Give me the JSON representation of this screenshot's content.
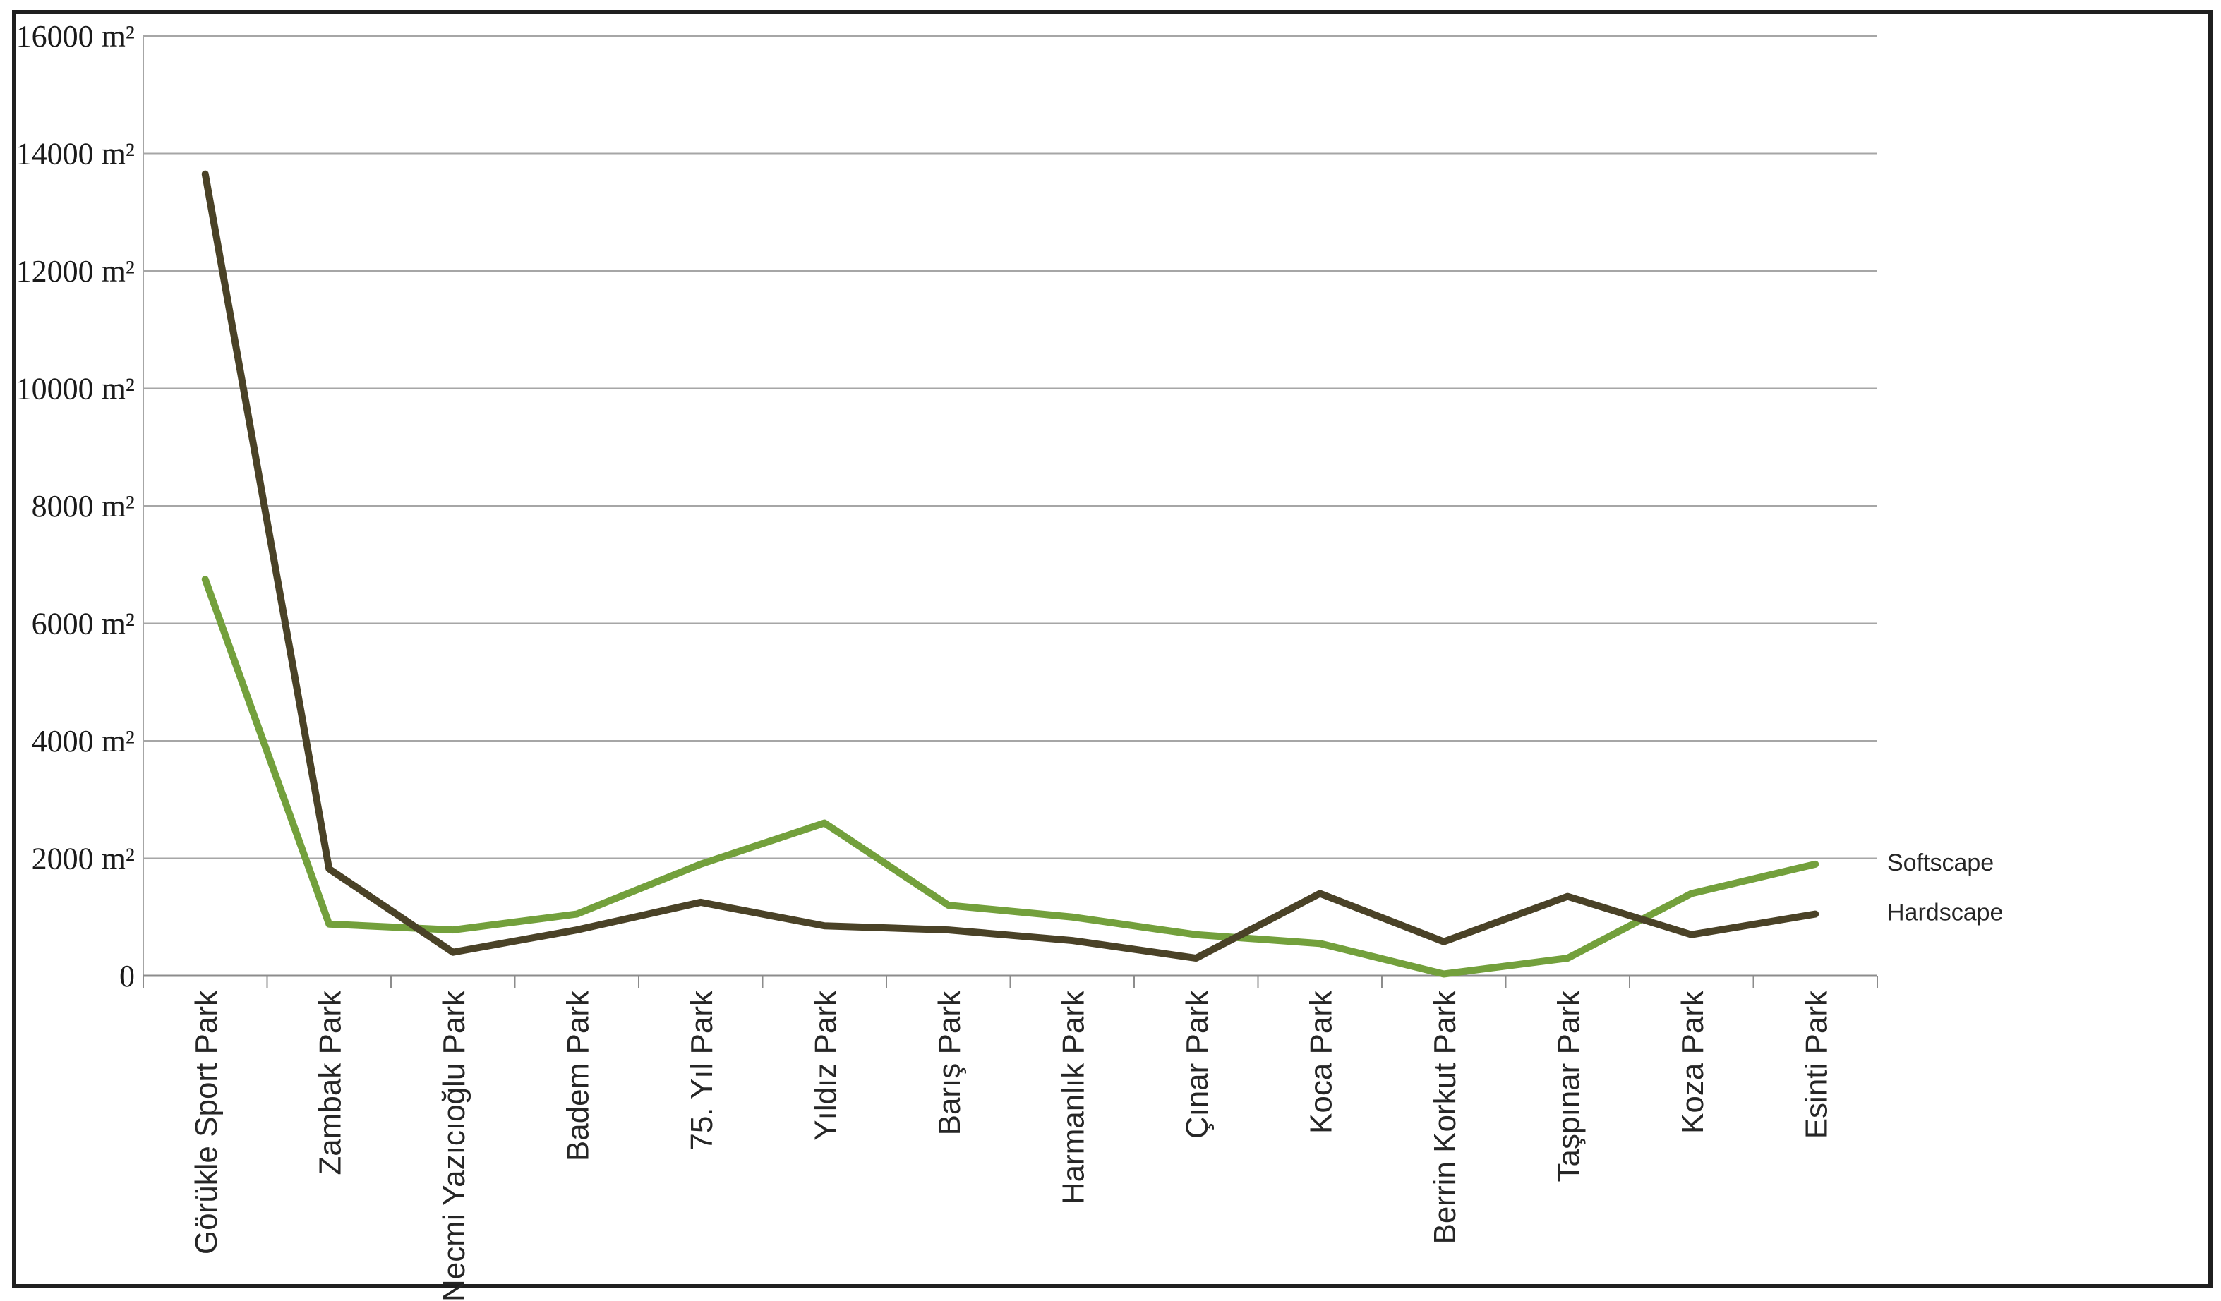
{
  "chart_data": {
    "type": "line",
    "title": "",
    "unit": "m²",
    "categories": [
      "Görükle Sport Park",
      "Zambak Park",
      "Necmi Yazıcıoğlu Park",
      "Badem Park",
      "75. Yıl Park",
      "Yıldız Park",
      "Barış Park",
      "Harmanlık Park",
      "Çınar Park",
      "Koca Park",
      "Berrin Korkut Park",
      "Taşpınar Park",
      "Koza Park",
      "Esinti Park"
    ],
    "series": [
      {
        "name": "Softscape",
        "color": "#73a03c",
        "values": [
          6750,
          880,
          780,
          1050,
          1900,
          2600,
          1200,
          1000,
          700,
          550,
          30,
          300,
          1400,
          1900
        ]
      },
      {
        "name": "Hardscape",
        "color": "#4a4227",
        "values": [
          13650,
          1820,
          400,
          780,
          1250,
          850,
          780,
          600,
          300,
          1400,
          580,
          1350,
          700,
          1050
        ]
      }
    ],
    "y_axis": {
      "min": 0,
      "max": 16000,
      "step": 2000,
      "tick_labels": [
        "0",
        "2000 m²",
        "4000 m²",
        "6000 m²",
        "8000 m²",
        "10000 m²",
        "12000 m²",
        "14000 m²",
        "16000 m²"
      ]
    },
    "grid": true,
    "legend_position": "right-end-of-lines"
  },
  "colors": {
    "gridline": "#a6a6a6",
    "axis": "#8c8c8c",
    "border": "#1f1f1f",
    "background": "#ffffff",
    "softscape": "#73a03c",
    "hardscape": "#4a4227"
  },
  "series_end_labels": {
    "softscape": "Softscape",
    "hardscape": "Hardscape"
  }
}
